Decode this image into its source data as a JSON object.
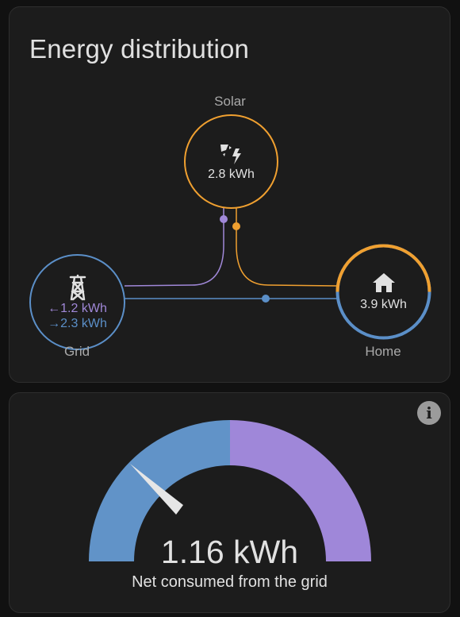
{
  "energy_card": {
    "title": "Energy distribution",
    "solar": {
      "label": "Solar",
      "value": "2.8 kWh",
      "color": "#f0a030"
    },
    "grid": {
      "label": "Grid",
      "import_value": "1.2 kWh",
      "export_value": "2.3 kWh",
      "import_arrow": "←",
      "export_arrow": "→",
      "import_color": "#a088d8",
      "export_color": "#5b8fc8"
    },
    "home": {
      "label": "Home",
      "value": "3.9 kWh",
      "color": "#5b8fc8"
    }
  },
  "gauge_card": {
    "value": "1.16 kWh",
    "caption": "Net consumed from the grid",
    "info_icon_text": "i",
    "consumed_color": "#6193c8",
    "returned_color": "#9f87d9",
    "needle_fraction": 0.22
  }
}
